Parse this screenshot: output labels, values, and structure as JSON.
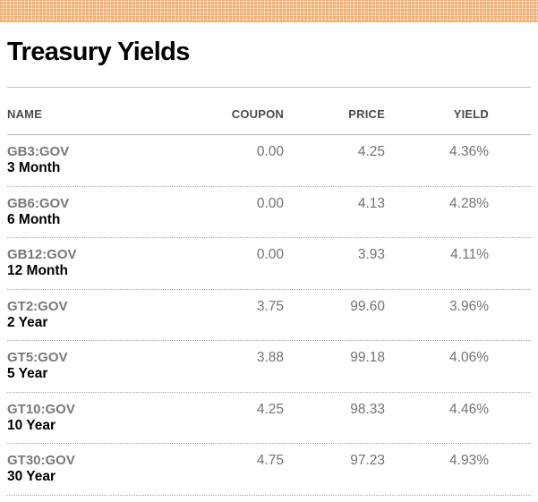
{
  "title": "Treasury Yields",
  "theme": {
    "accent_orange": "#ec8e3a",
    "rule_gray": "#bfbfbf",
    "ticker_gray": "#77787b",
    "value_gray": "#717376"
  },
  "table": {
    "columns": {
      "name": "NAME",
      "coupon": "COUPON",
      "price": "PRICE",
      "yield": "YIELD"
    },
    "rows": [
      {
        "ticker": "GB3:GOV",
        "period": "3 Month",
        "coupon": "0.00",
        "price": "4.25",
        "yield": "4.36%"
      },
      {
        "ticker": "GB6:GOV",
        "period": "6 Month",
        "coupon": "0.00",
        "price": "4.13",
        "yield": "4.28%"
      },
      {
        "ticker": "GB12:GOV",
        "period": "12 Month",
        "coupon": "0.00",
        "price": "3.93",
        "yield": "4.11%"
      },
      {
        "ticker": "GT2:GOV",
        "period": "2 Year",
        "coupon": "3.75",
        "price": "99.60",
        "yield": "3.96%"
      },
      {
        "ticker": "GT5:GOV",
        "period": "5 Year",
        "coupon": "3.88",
        "price": "99.18",
        "yield": "4.06%"
      },
      {
        "ticker": "GT10:GOV",
        "period": "10 Year",
        "coupon": "4.25",
        "price": "98.33",
        "yield": "4.46%"
      },
      {
        "ticker": "GT30:GOV",
        "period": "30 Year",
        "coupon": "4.75",
        "price": "97.23",
        "yield": "4.93%"
      }
    ]
  }
}
